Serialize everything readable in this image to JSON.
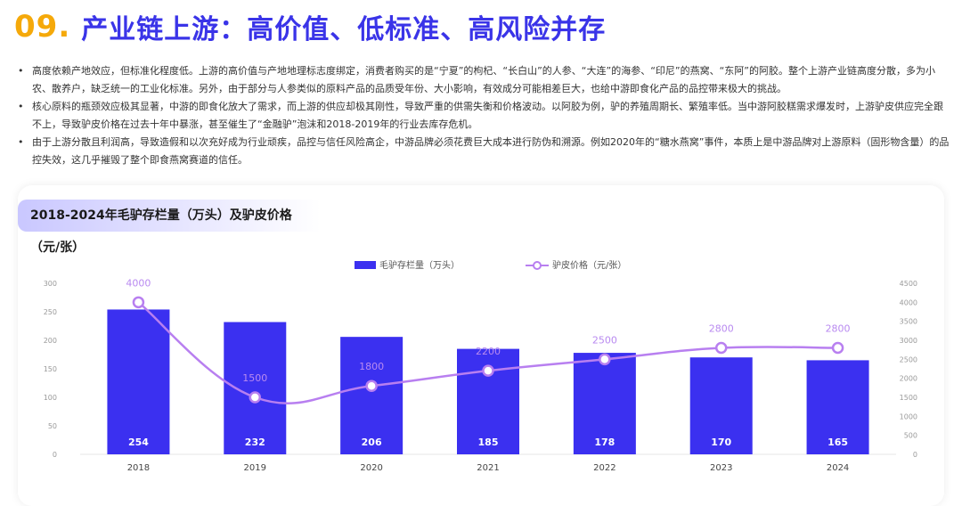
{
  "header": {
    "number": "09.",
    "title": "产业链上游：高价值、低标准、高风险并存"
  },
  "bullets": [
    "高度依赖产地效应，但标准化程度低。上游的高价值与产地地理标志度绑定，消费者购买的是“宁夏”的枸杞、“长白山”的人参、“大连”的海参、“印尼”的燕窝、“东阿”的阿胶。整个上游产业链高度分散，多为小农、散养户，缺乏统一的工业化标准。另外，由于部分与人参类似的原料产品的品质受年份、大小影响，有效成分可能相差巨大，也给中游即食化产品的品控带来极大的挑战。",
    "核心原料的瓶颈效应极其显著，中游的即食化放大了需求，而上游的供应却极其刚性，导致严重的供需失衡和价格波动。以阿胶为例，驴的养殖周期长、繁殖率低。当中游阿胶糕需求爆发时，上游驴皮供应完全跟不上，导致驴皮价格在过去十年中暴涨，甚至催生了“金融驴”泡沫和2018-2019年的行业去库存危机。",
    "由于上游分散且利润高，导致造假和以次充好成为行业顽疾，品控与信任风险高企，中游品牌必须花费巨大成本进行防伪和溯源。例如2020年的“糖水燕窝”事件，本质上是中游品牌对上游原料（固形物含量）的品控失效，这几乎摧毁了整个即食燕窝赛道的信任。"
  ],
  "card": {
    "title": "2018-2024年毛驴存栏量（万头）及驴皮价格（元/张）"
  },
  "chart_data": {
    "type": "bar",
    "title": "2018-2024年毛驴存栏量（万头）及驴皮价格（元/张）",
    "categories": [
      "2018",
      "2019",
      "2020",
      "2021",
      "2022",
      "2023",
      "2024"
    ],
    "series": [
      {
        "name": "毛驴存栏量（万头）",
        "type": "bar",
        "axis": "left",
        "values": [
          254,
          232,
          206,
          185,
          178,
          170,
          165
        ]
      },
      {
        "name": "驴皮价格（元/张）",
        "type": "line",
        "axis": "right",
        "values": [
          4000,
          1500,
          1800,
          2200,
          2500,
          2800,
          2800
        ]
      }
    ],
    "y_left": {
      "min": 0,
      "max": 300,
      "ticks": [
        0,
        50,
        100,
        150,
        200,
        250,
        300
      ]
    },
    "y_right": {
      "min": 0,
      "max": 4500,
      "ticks": [
        0,
        500,
        1000,
        1500,
        2000,
        2500,
        3000,
        3500,
        4000,
        4500
      ]
    },
    "legend": "top-center",
    "colors": {
      "bar": "#3b30f0",
      "line": "#b87ff0"
    }
  }
}
